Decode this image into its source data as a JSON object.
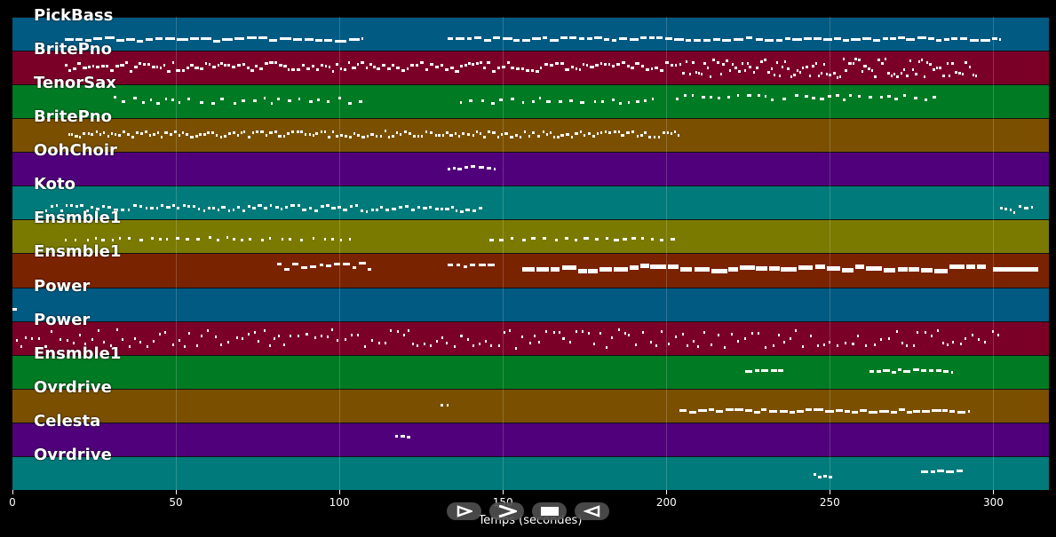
{
  "tracks": [
    {
      "label": "PickBass",
      "color": "#005a82"
    },
    {
      "label": "BritePno",
      "color": "#7a0028"
    },
    {
      "label": "TenorSax",
      "color": "#007a23"
    },
    {
      "label": "BritePno",
      "color": "#7a5000"
    },
    {
      "label": "OohChoir",
      "color": "#50007a"
    },
    {
      "label": "Koto",
      "color": "#007a7a"
    },
    {
      "label": "Ensmble1",
      "color": "#7a7a00"
    },
    {
      "label": "Ensmble1",
      "color": "#7a2300"
    },
    {
      "label": "Power",
      "color": "#005a82"
    },
    {
      "label": "Power",
      "color": "#7a0028"
    },
    {
      "label": "Ensmble1",
      "color": "#007a23"
    },
    {
      "label": "Ovrdrive",
      "color": "#7a5000"
    },
    {
      "label": "Celesta",
      "color": "#50007a"
    },
    {
      "label": "Ovrdrive",
      "color": "#007a7a"
    }
  ],
  "axis": {
    "xlabel": "Temps (secondes)",
    "ticks": [
      "0",
      "50",
      "100",
      "150",
      "200",
      "250",
      "300"
    ],
    "tick_values": [
      0,
      50,
      100,
      150,
      200,
      250,
      300
    ],
    "range": [
      0,
      317
    ]
  },
  "controls": [
    {
      "name": "play-button",
      "icon": "play-outline-icon"
    },
    {
      "name": "forward-button",
      "icon": "forward-icon"
    },
    {
      "name": "stop-button",
      "icon": "stop-icon"
    },
    {
      "name": "back-button",
      "icon": "back-icon"
    }
  ],
  "note_segments": [
    {
      "track": 0,
      "start": 16,
      "end": 107,
      "pitch_mid": 0.65,
      "spread": 0.06,
      "dur": 3,
      "gap": 0.4
    },
    {
      "track": 0,
      "start": 133,
      "end": 302,
      "pitch_mid": 0.65,
      "spread": 0.05,
      "dur": 2.5,
      "gap": 0.4
    },
    {
      "track": 1,
      "start": 16,
      "end": 203,
      "pitch_mid": 0.45,
      "spread": 0.15,
      "dur": 1.2,
      "gap": 0.2
    },
    {
      "track": 1,
      "start": 204,
      "end": 295,
      "pitch_mid": 0.5,
      "spread": 0.3,
      "dur": 0.9,
      "gap": 0.05
    },
    {
      "track": 2,
      "start": 31,
      "end": 109,
      "pitch_mid": 0.45,
      "spread": 0.1,
      "dur": 1.2,
      "gap": 1.8
    },
    {
      "track": 2,
      "start": 137,
      "end": 196,
      "pitch_mid": 0.45,
      "spread": 0.1,
      "dur": 1.2,
      "gap": 1.8
    },
    {
      "track": 2,
      "start": 203,
      "end": 284,
      "pitch_mid": 0.35,
      "spread": 0.08,
      "dur": 1.2,
      "gap": 1.6
    },
    {
      "track": 3,
      "start": 17,
      "end": 204,
      "pitch_mid": 0.45,
      "spread": 0.1,
      "dur": 1,
      "gap": 0.3
    },
    {
      "track": 4,
      "start": 133,
      "end": 148,
      "pitch_mid": 0.45,
      "spread": 0.06,
      "dur": 1.5,
      "gap": 0.6
    },
    {
      "track": 5,
      "start": 10,
      "end": 144,
      "pitch_mid": 0.65,
      "spread": 0.1,
      "dur": 1.2,
      "gap": 0.5
    },
    {
      "track": 5,
      "start": 302,
      "end": 312,
      "pitch_mid": 0.7,
      "spread": 0.1,
      "dur": 1.2,
      "gap": 0.5
    },
    {
      "track": 6,
      "start": 16,
      "end": 105,
      "pitch_mid": 0.55,
      "spread": 0.04,
      "dur": 1,
      "gap": 2
    },
    {
      "track": 6,
      "start": 146,
      "end": 203,
      "pitch_mid": 0.55,
      "spread": 0.04,
      "dur": 1.4,
      "gap": 1.6
    },
    {
      "track": 7,
      "start": 81,
      "end": 110,
      "pitch_mid": 0.35,
      "spread": 0.12,
      "dur": 2,
      "gap": 0.5
    },
    {
      "track": 7,
      "start": 133,
      "end": 148,
      "pitch_mid": 0.3,
      "spread": 0.05,
      "dur": 2,
      "gap": 0.5
    },
    {
      "track": 7,
      "start": 156,
      "end": 298,
      "pitch_mid": 0.4,
      "spread": 0.1,
      "dur": 4,
      "gap": 0.3
    },
    {
      "track": 7,
      "start": 300,
      "end": 314,
      "pitch_mid": 0.45,
      "spread": 0.0,
      "dur": 14,
      "gap": 0.3
    },
    {
      "track": 8,
      "start": 0,
      "end": 2,
      "pitch_mid": 0.65,
      "spread": 0.0,
      "dur": 2,
      "gap": 1
    },
    {
      "track": 9,
      "start": 1,
      "end": 302,
      "pitch_mid": 0.5,
      "spread": 0.3,
      "dur": 0.7,
      "gap": 1.2
    },
    {
      "track": 10,
      "start": 224,
      "end": 236,
      "pitch_mid": 0.45,
      "spread": 0.05,
      "dur": 2,
      "gap": 0.4
    },
    {
      "track": 10,
      "start": 262,
      "end": 288,
      "pitch_mid": 0.45,
      "spread": 0.05,
      "dur": 2,
      "gap": 0.4
    },
    {
      "track": 11,
      "start": 131,
      "end": 133,
      "pitch_mid": 0.45,
      "spread": 0.0,
      "dur": 1.2,
      "gap": 1
    },
    {
      "track": 11,
      "start": 204,
      "end": 293,
      "pitch_mid": 0.65,
      "spread": 0.05,
      "dur": 2.5,
      "gap": 0.3
    },
    {
      "track": 12,
      "start": 117,
      "end": 122,
      "pitch_mid": 0.4,
      "spread": 0.05,
      "dur": 1.5,
      "gap": 0.4
    },
    {
      "track": 13,
      "start": 245,
      "end": 251,
      "pitch_mid": 0.55,
      "spread": 0.05,
      "dur": 1.5,
      "gap": 0.4
    },
    {
      "track": 13,
      "start": 278,
      "end": 291,
      "pitch_mid": 0.4,
      "spread": 0.03,
      "dur": 2,
      "gap": 0.4
    }
  ]
}
